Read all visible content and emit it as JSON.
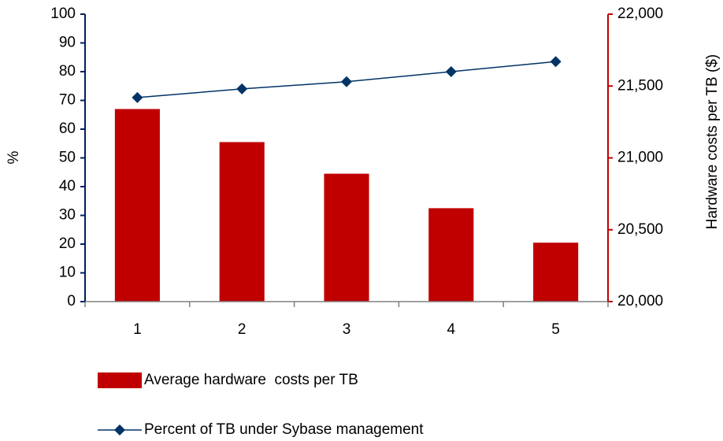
{
  "chart_data": {
    "type": "bar_line",
    "categories": [
      1,
      2,
      3,
      4,
      5
    ],
    "ylabel": "%",
    "y2label": "Hardware costs per TB ($)",
    "ylim": [
      0,
      100
    ],
    "yticks": [
      0,
      10,
      20,
      30,
      40,
      50,
      60,
      70,
      80,
      90,
      100
    ],
    "y2lim": [
      20000,
      22000
    ],
    "y2ticks": [
      {
        "value": 20000,
        "label": "20,000"
      },
      {
        "value": 20500,
        "label": "20,500"
      },
      {
        "value": 21000,
        "label": "21,000"
      },
      {
        "value": 21500,
        "label": "21,500"
      },
      {
        "value": 22000,
        "label": "22,000"
      }
    ],
    "series": [
      {
        "name": "Average hardware  costs per TB",
        "type": "bar",
        "axis": "y2",
        "color": "#c00000",
        "values": [
          21340,
          21110,
          20890,
          20650,
          20410
        ]
      },
      {
        "name": "Percent of TB under Sybase management",
        "type": "line",
        "axis": "y",
        "color": "#003366",
        "values": [
          71,
          74,
          76.5,
          80,
          83.5
        ]
      }
    ]
  }
}
